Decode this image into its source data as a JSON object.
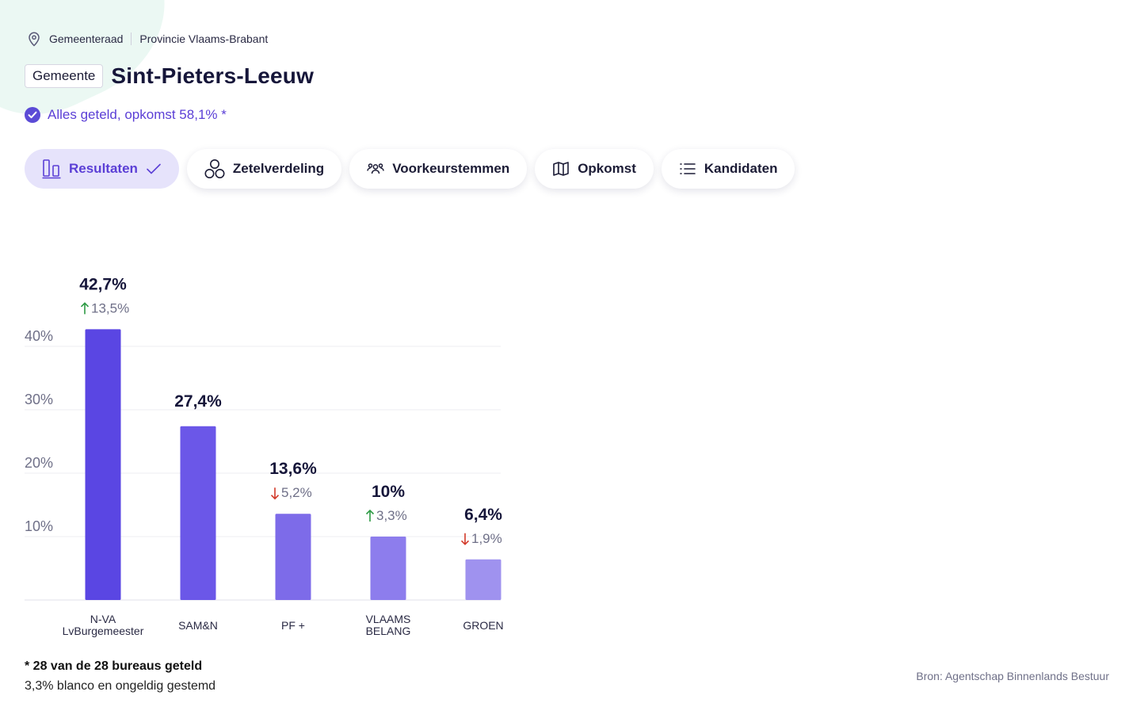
{
  "breadcrumb": {
    "level": "Gemeenteraad",
    "province": "Provincie Vlaams-Brabant"
  },
  "header": {
    "tag": "Gemeente",
    "title": "Sint-Pieters-Leeuw"
  },
  "status": {
    "text": "Alles geteld, opkomst 58,1% *"
  },
  "tabs": [
    {
      "label": "Resultaten",
      "icon": "bar-chart-icon",
      "active": true
    },
    {
      "label": "Zetelverdeling",
      "icon": "circles-icon",
      "active": false
    },
    {
      "label": "Voorkeurstemmen",
      "icon": "people-icon",
      "active": false
    },
    {
      "label": "Opkomst",
      "icon": "map-icon",
      "active": false
    },
    {
      "label": "Kandidaten",
      "icon": "list-icon",
      "active": false
    }
  ],
  "chart_data": {
    "type": "bar",
    "categories": [
      "N-VA LvBurgemeester",
      "SAM&N",
      "PF +",
      "VLAAMS BELANG",
      "GROEN"
    ],
    "category_lines": [
      [
        "N-VA",
        "LvBurgemeester"
      ],
      [
        "SAM&N"
      ],
      [
        "PF +"
      ],
      [
        "VLAAMS",
        "BELANG"
      ],
      [
        "GROEN"
      ]
    ],
    "values": [
      42.7,
      27.4,
      13.6,
      10,
      6.4
    ],
    "value_labels": [
      "42,7%",
      "27,4%",
      "13,6%",
      "10%",
      "6,4%"
    ],
    "changes": [
      {
        "dir": "up",
        "label": "13,5%"
      },
      null,
      {
        "dir": "down",
        "label": "5,2%"
      },
      {
        "dir": "up",
        "label": "3,3%"
      },
      {
        "dir": "down",
        "label": "1,9%"
      }
    ],
    "y_ticks": [
      10,
      20,
      30,
      40
    ],
    "y_tick_labels": [
      "10%",
      "20%",
      "30%",
      "40%"
    ],
    "ylim": [
      0,
      40
    ],
    "grid": true,
    "colors": [
      "#5a46e3",
      "#6b57e8",
      "#7d6be9",
      "#8d7ded",
      "#9f92ef"
    ],
    "up_color": "#2e9b45",
    "down_color": "#d23a2a"
  },
  "footer": {
    "bureaus": "* 28 van de 28 bureaus geteld",
    "blanco": "3,3% blanco en ongeldig gestemd",
    "source": "Bron: Agentschap Binnenlands Bestuur"
  }
}
